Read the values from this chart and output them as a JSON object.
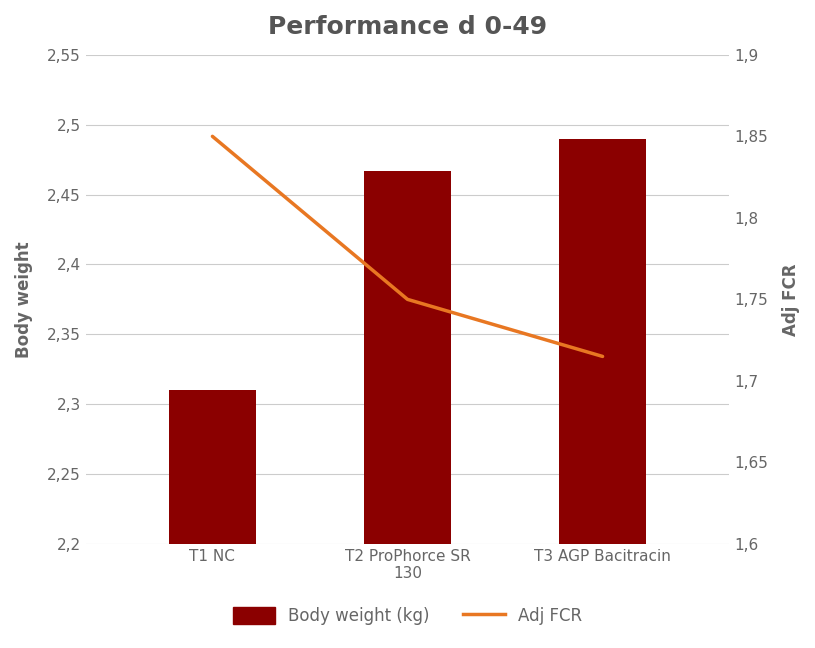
{
  "title": "Performance d 0-49",
  "categories": [
    "T1 NC",
    "T2 ProPhorce SR\n130",
    "T3 AGP Bacitracin"
  ],
  "bar_values": [
    2.31,
    2.467,
    2.49
  ],
  "bar_color": "#8B0000",
  "line_values": [
    1.85,
    1.75,
    1.715
  ],
  "line_color": "#E87722",
  "ylabel_left": "Body weight",
  "ylabel_right": "Adj FCR",
  "ylim_left": [
    2.2,
    2.55
  ],
  "ylim_right": [
    1.6,
    1.9
  ],
  "yticks_left": [
    2.2,
    2.25,
    2.3,
    2.35,
    2.4,
    2.45,
    2.5,
    2.55
  ],
  "yticks_right": [
    1.6,
    1.65,
    1.7,
    1.75,
    1.8,
    1.85,
    1.9
  ],
  "legend_bar_label": "Body weight (kg)",
  "legend_line_label": "Adj FCR",
  "background_color": "#ffffff",
  "text_color": "#666666",
  "title_color": "#555555",
  "grid_color": "#cccccc",
  "line_width": 2.5,
  "bar_width": 0.45,
  "title_fontsize": 18,
  "axis_label_fontsize": 12,
  "tick_fontsize": 11,
  "legend_fontsize": 12
}
